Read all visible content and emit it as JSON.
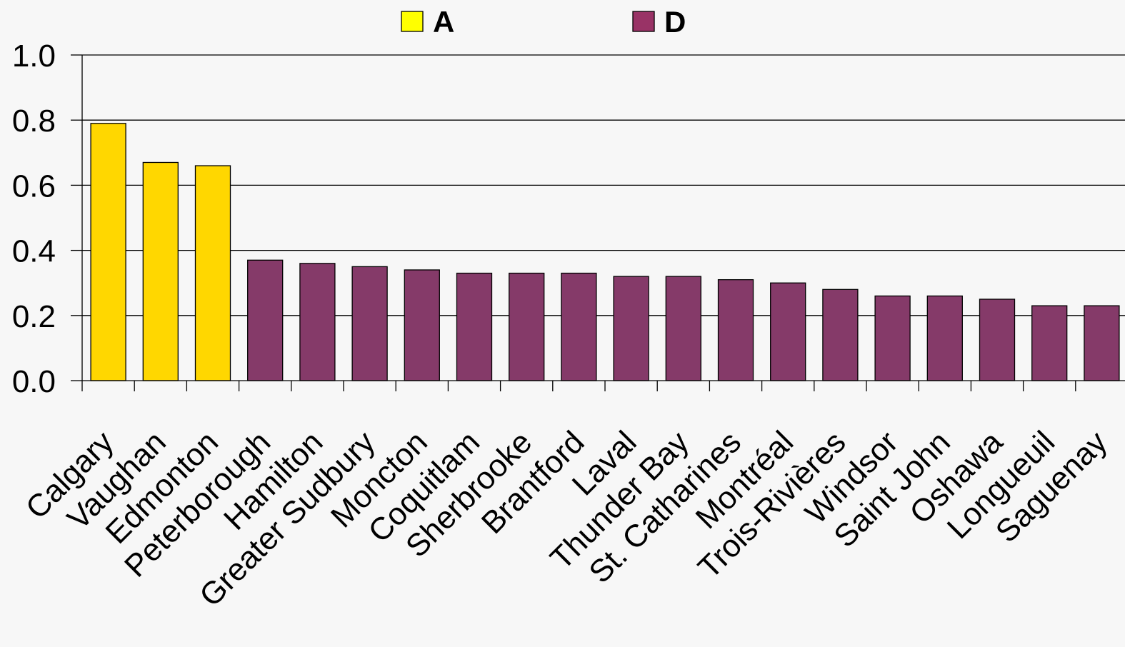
{
  "chart_data": {
    "type": "bar",
    "title": "",
    "xlabel": "",
    "ylabel": "",
    "ylim": [
      0,
      1.0
    ],
    "yticks": [
      "0.0",
      "0.2",
      "0.4",
      "0.6",
      "0.8",
      "1.0"
    ],
    "grid": true,
    "legend_position": "top",
    "categories": [
      "Calgary",
      "Vaughan",
      "Edmonton",
      "Peterborough",
      "Hamilton",
      "Greater Sudbury",
      "Moncton",
      "Coquitlam",
      "Sherbrooke",
      "Brantford",
      "Laval",
      "Thunder Bay",
      "St. Catharines",
      "Montréal",
      "Trois-Rivières",
      "Windsor",
      "Saint John",
      "Oshawa",
      "Longueuil",
      "Saguenay"
    ],
    "values": [
      0.79,
      0.67,
      0.66,
      0.37,
      0.36,
      0.35,
      0.34,
      0.33,
      0.33,
      0.33,
      0.32,
      0.32,
      0.31,
      0.3,
      0.28,
      0.26,
      0.26,
      0.25,
      0.23,
      0.23
    ],
    "groups": [
      "A",
      "A",
      "A",
      "D",
      "D",
      "D",
      "D",
      "D",
      "D",
      "D",
      "D",
      "D",
      "D",
      "D",
      "D",
      "D",
      "D",
      "D",
      "D",
      "D"
    ],
    "legend": [
      {
        "key": "A",
        "label": "A",
        "color": "#ffff00"
      },
      {
        "key": "D",
        "label": "D",
        "color": "#993366"
      }
    ],
    "bar_colors": {
      "A": "#ffd700",
      "D": "#853a69"
    }
  }
}
